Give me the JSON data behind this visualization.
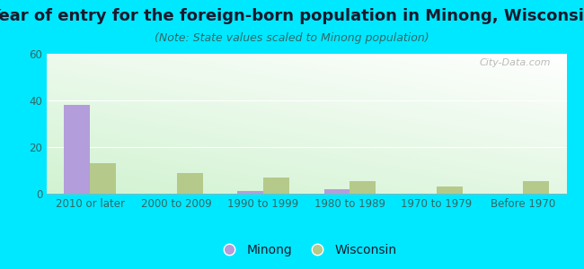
{
  "title": "Year of entry for the foreign-born population in Minong, Wisconsin",
  "subtitle": "(Note: State values scaled to Minong population)",
  "categories": [
    "2010 or later",
    "2000 to 2009",
    "1990 to 1999",
    "1980 to 1989",
    "1970 to 1979",
    "Before 1970"
  ],
  "minong_values": [
    38,
    0,
    1,
    2,
    0,
    0
  ],
  "wisconsin_values": [
    13,
    9,
    7,
    5.5,
    3,
    5.5
  ],
  "minong_color": "#b39ddb",
  "wisconsin_color": "#b5c98a",
  "background_outer": "#00e8ff",
  "ylim": [
    0,
    60
  ],
  "yticks": [
    0,
    20,
    40,
    60
  ],
  "bar_width": 0.3,
  "title_fontsize": 13,
  "subtitle_fontsize": 9,
  "tick_fontsize": 8.5,
  "legend_fontsize": 10,
  "grid_color": "#ffffff",
  "watermark": "City-Data.com"
}
